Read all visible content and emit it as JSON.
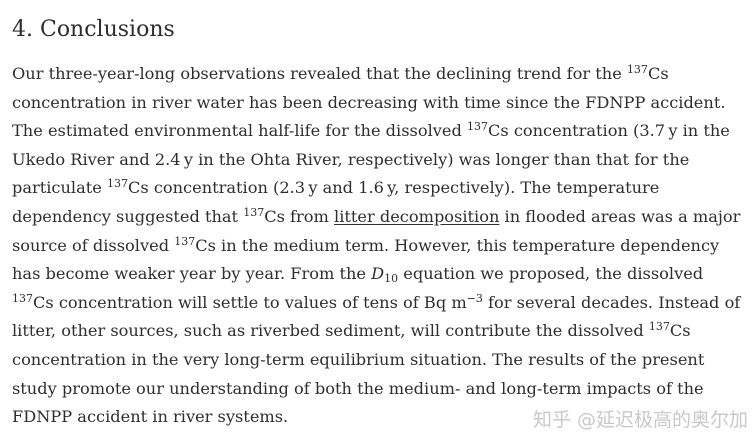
{
  "section": {
    "heading": "4. Conclusions"
  },
  "paragraph": {
    "t01": "Our three-year-long observations revealed that the declining trend for the ",
    "sup01": "137",
    "t02": "Cs concentration in river water has been decreasing with time since the FDNPP accident. The estimated environmental half-life for the dissolved ",
    "sup02": "137",
    "t03": "Cs concentration (3.7 y in the Ukedo River and 2.4 y in the Ohta River, respectively) was longer than that for the particulate ",
    "sup03": "137",
    "t04": "Cs concentration (2.3 y and 1.6 y, respectively). The temperature dependency suggested that ",
    "sup04": "137",
    "t05": "Cs from ",
    "link": "litter decomposition",
    "t06": " in flooded areas was a major source of dissolved ",
    "sup05": "137",
    "t07": "Cs in the medium term. However, this temperature dependency has become weaker year by year. From the ",
    "d_var": "D",
    "d_sub": "10",
    "t08": " equation we proposed, the dissolved ",
    "sup06": "137",
    "t09": "Cs concentration will settle to values of tens of Bq m",
    "sup07": "−3",
    "t10": " for several decades. Instead of litter, other sources, such as riverbed sediment, will contribute the dissolved ",
    "sup08": "137",
    "t11": "Cs concentration in the very long-term equilibrium situation. The results of the present study promote our understanding of both the medium- and long-term impacts of the FDNPP accident in river systems."
  },
  "watermark": {
    "text": "知乎 @延迟极高的奥尔加"
  }
}
